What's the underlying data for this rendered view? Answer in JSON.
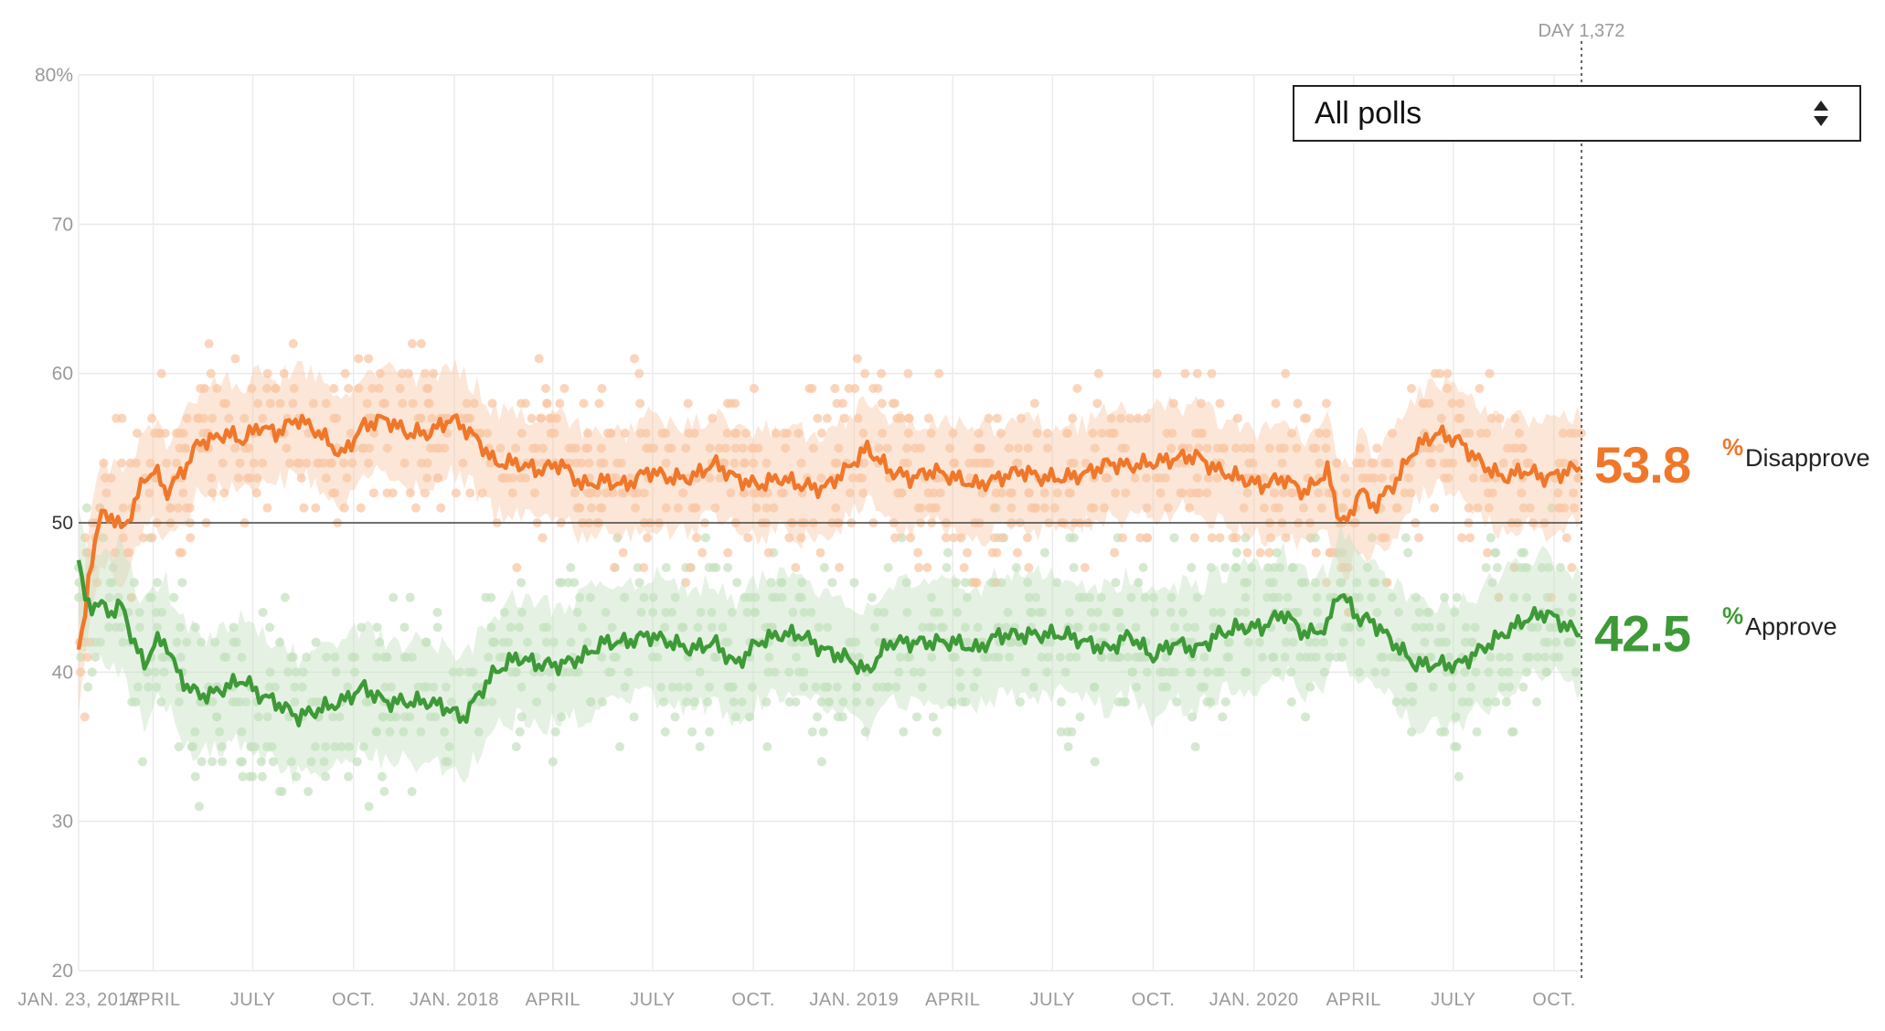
{
  "dropdown": {
    "selected": "All polls",
    "icon": "chevron-up-down-icon"
  },
  "day_marker": {
    "label": "DAY 1,372"
  },
  "colors": {
    "disapprove": "#f0772a",
    "approve": "#3d9a37",
    "disapprove_light": "#f8c7a6",
    "approve_light": "#c6e2c0"
  },
  "chart_data": {
    "type": "line",
    "title": "",
    "xlabel": "",
    "ylabel": "",
    "ylim": [
      20,
      80
    ],
    "y_ticks": [
      "80%",
      "70",
      "60",
      "50",
      "40",
      "30",
      "20"
    ],
    "y_tick_values": [
      80,
      70,
      60,
      50,
      40,
      30,
      20
    ],
    "x_tick_labels": [
      "JAN. 23, 2017",
      "APRIL",
      "JULY",
      "OCT.",
      "JAN. 2018",
      "APRIL",
      "JULY",
      "OCT.",
      "JAN. 2019",
      "APRIL",
      "JULY",
      "OCT.",
      "JAN. 2020",
      "APRIL",
      "JULY",
      "OCT."
    ],
    "x_tick_days": [
      0,
      68,
      159,
      251,
      343,
      433,
      524,
      616,
      708,
      798,
      889,
      981,
      1073,
      1164,
      1255,
      1347
    ],
    "x_range_days": [
      0,
      1372
    ],
    "reference_line": 50,
    "series": [
      {
        "name": "Disapprove",
        "final_value": "53.8",
        "x_days": [
          0,
          5,
          10,
          20,
          30,
          40,
          50,
          60,
          70,
          80,
          90,
          100,
          110,
          120,
          135,
          150,
          165,
          180,
          200,
          220,
          240,
          260,
          280,
          300,
          320,
          340,
          350,
          365,
          380,
          400,
          420,
          440,
          460,
          480,
          500,
          520,
          540,
          560,
          580,
          600,
          620,
          640,
          660,
          680,
          700,
          720,
          740,
          760,
          780,
          800,
          820,
          840,
          860,
          880,
          900,
          920,
          940,
          960,
          980,
          1000,
          1020,
          1040,
          1060,
          1080,
          1100,
          1120,
          1140,
          1150,
          1160,
          1170,
          1180,
          1200,
          1220,
          1240,
          1260,
          1280,
          1300,
          1320,
          1340,
          1360,
          1372
        ],
        "values": [
          41.5,
          43,
          47,
          50.5,
          50.5,
          49.5,
          51,
          53,
          53.5,
          52,
          53,
          54,
          55.5,
          55.5,
          56,
          55.5,
          56.5,
          56,
          57,
          56,
          54.5,
          56.5,
          57,
          56,
          56,
          57,
          56.5,
          55.5,
          54,
          54,
          53.5,
          54,
          52.5,
          52.8,
          52.5,
          53.5,
          53,
          53,
          54,
          53,
          52.5,
          53,
          52.5,
          52.3,
          53.5,
          55,
          53.5,
          53,
          53.5,
          53,
          52.5,
          53,
          53.5,
          53,
          53,
          53.3,
          54,
          53.8,
          54,
          54.3,
          54.5,
          53.5,
          53,
          52.5,
          53,
          52,
          53.5,
          50.5,
          50,
          52.5,
          51,
          52.5,
          55,
          56,
          55.5,
          54,
          53,
          53.5,
          53,
          53.5,
          53.8
        ],
        "band_upper_offset": 3.5,
        "band_lower_offset": 3.5
      },
      {
        "name": "Approve",
        "final_value": "42.5",
        "x_days": [
          0,
          5,
          10,
          20,
          30,
          40,
          50,
          60,
          70,
          80,
          90,
          100,
          110,
          120,
          135,
          150,
          165,
          180,
          200,
          220,
          240,
          260,
          280,
          300,
          320,
          340,
          350,
          365,
          380,
          400,
          420,
          440,
          460,
          480,
          500,
          520,
          540,
          560,
          580,
          600,
          620,
          640,
          660,
          680,
          700,
          720,
          740,
          760,
          780,
          800,
          820,
          840,
          860,
          880,
          900,
          920,
          940,
          960,
          980,
          1000,
          1020,
          1040,
          1060,
          1080,
          1100,
          1120,
          1140,
          1150,
          1160,
          1170,
          1180,
          1200,
          1220,
          1240,
          1260,
          1280,
          1300,
          1320,
          1340,
          1360,
          1372
        ],
        "values": [
          47.5,
          45,
          44.5,
          44.5,
          44,
          44.5,
          42,
          40.5,
          42,
          42,
          40,
          39,
          38.5,
          38.5,
          39,
          39.5,
          38.5,
          38,
          37,
          37.5,
          38,
          39,
          38,
          38,
          38,
          37.5,
          36.8,
          38.5,
          40,
          41,
          40.5,
          40.5,
          41,
          42,
          42,
          42.5,
          42,
          41.5,
          42,
          40.5,
          42,
          42.5,
          42.5,
          41.5,
          41,
          40,
          42,
          42,
          42,
          42,
          41.5,
          42.5,
          42.5,
          42.5,
          42.5,
          42,
          41.5,
          42.5,
          41,
          42,
          41.5,
          42.5,
          43,
          43,
          44,
          42.5,
          43,
          45.5,
          44.5,
          43.5,
          43.5,
          42,
          40.5,
          40.5,
          40.5,
          41.5,
          42.5,
          43.5,
          44,
          43,
          42.5
        ],
        "band_upper_offset": 4,
        "band_lower_offset": 4
      }
    ],
    "legend": "right-end-labels",
    "grid": true
  }
}
